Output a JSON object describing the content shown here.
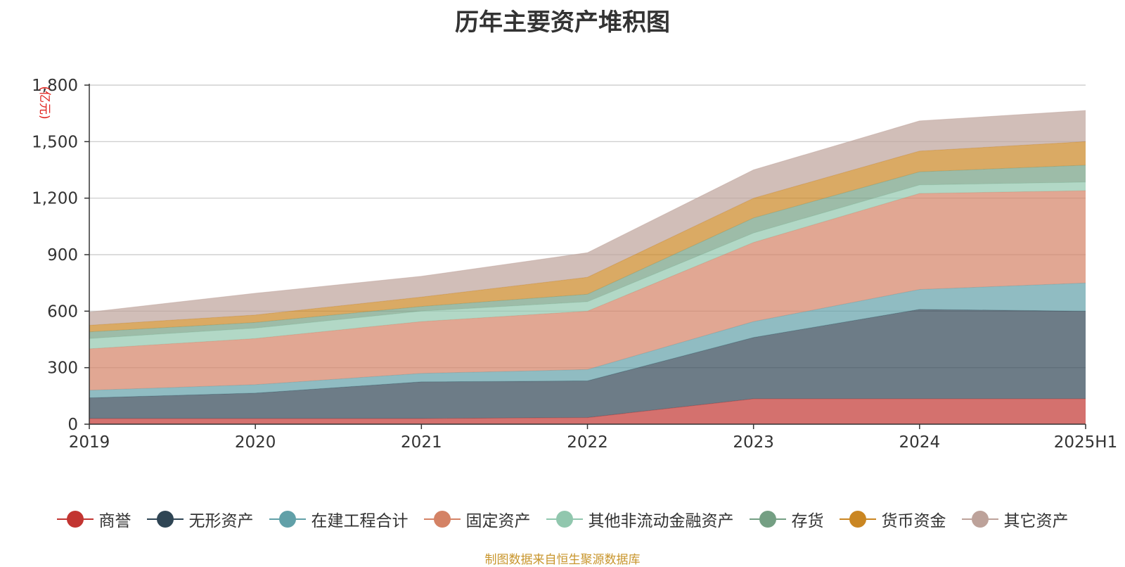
{
  "chart_data": {
    "type": "area",
    "stacked": true,
    "title": "历年主要资产堆积图",
    "ylabel": "(亿元)",
    "xlabel": "",
    "categories": [
      "2019",
      "2020",
      "2021",
      "2022",
      "2023",
      "2024",
      "2025H1"
    ],
    "ylim": [
      0,
      1800
    ],
    "yticks": [
      0,
      300,
      600,
      900,
      1200,
      1500,
      1800
    ],
    "ytick_labels": [
      "0",
      "300",
      "600",
      "900",
      "1,200",
      "1,500",
      "1,800"
    ],
    "grid": true,
    "legend_position": "bottom",
    "series": [
      {
        "name": "商誉",
        "color": "#c23531",
        "values": [
          30,
          30,
          30,
          35,
          135,
          135,
          135
        ]
      },
      {
        "name": "无形资产",
        "color": "#2f4554",
        "values": [
          110,
          135,
          195,
          195,
          325,
          475,
          465
        ]
      },
      {
        "name": "在建工程合计",
        "color": "#61a0a8",
        "values": [
          40,
          45,
          45,
          60,
          85,
          105,
          150
        ]
      },
      {
        "name": "固定资产",
        "color": "#d48265",
        "values": [
          220,
          245,
          275,
          310,
          420,
          510,
          490
        ]
      },
      {
        "name": "其他非流动金融资产",
        "color": "#91c7ae",
        "values": [
          55,
          55,
          55,
          50,
          50,
          45,
          45
        ]
      },
      {
        "name": "存货",
        "color": "#749f83",
        "values": [
          35,
          30,
          25,
          40,
          80,
          70,
          90
        ]
      },
      {
        "name": "货币资金",
        "color": "#ca8622",
        "values": [
          35,
          40,
          50,
          90,
          105,
          110,
          125
        ]
      },
      {
        "name": "其它资产",
        "color": "#bda29a",
        "values": [
          70,
          115,
          110,
          130,
          150,
          160,
          165
        ]
      }
    ],
    "source": "制图数据来自恒生聚源数据库"
  }
}
